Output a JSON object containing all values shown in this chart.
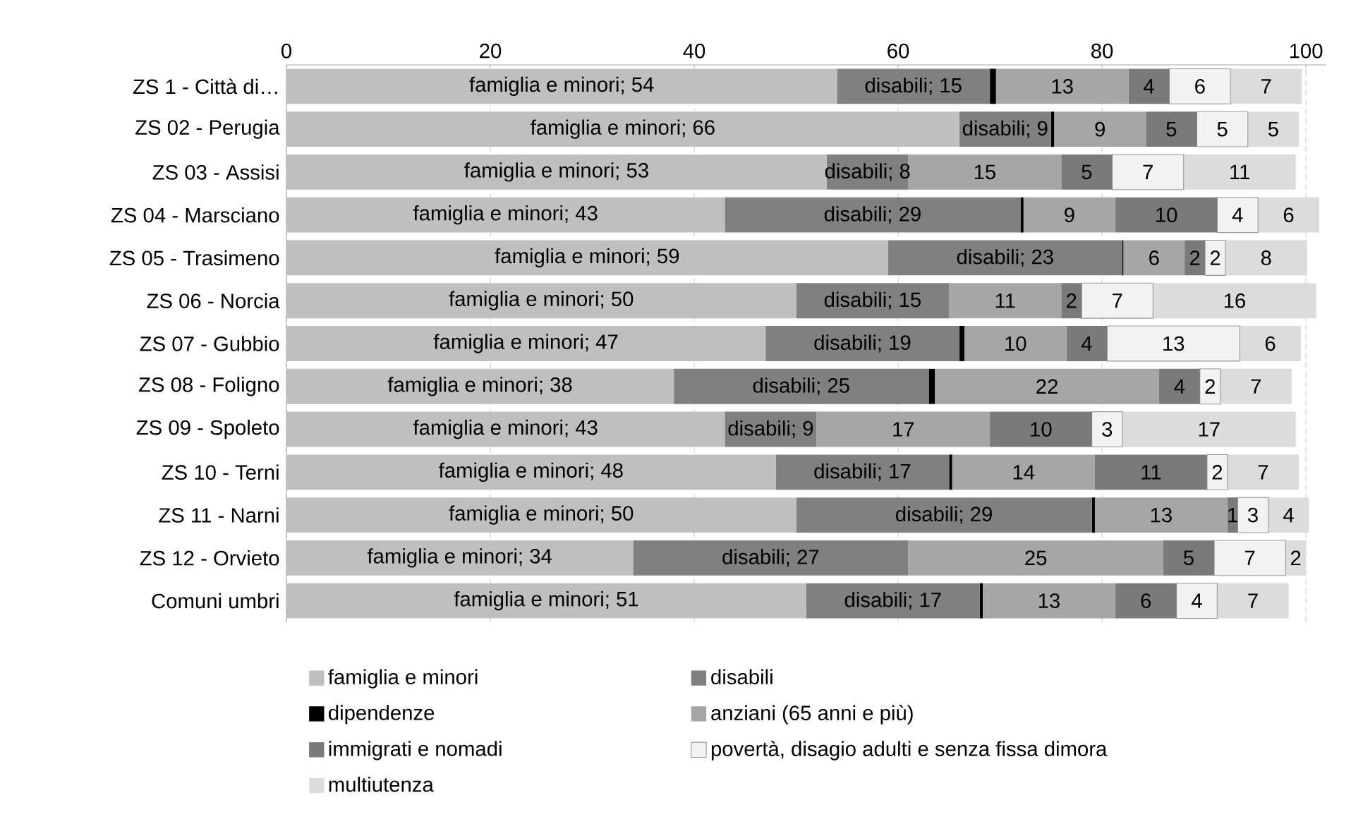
{
  "chart_data": {
    "type": "bar",
    "orientation": "horizontal",
    "stacked": true,
    "categories": [
      "ZS 1 - Città di…",
      "ZS 02 - Perugia",
      "ZS 03 - Assisi",
      "ZS 04 - Marsciano",
      "ZS 05 - Trasimeno",
      "ZS 06 - Norcia",
      "ZS 07 - Gubbio",
      "ZS 08 - Foligno",
      "ZS 09 - Spoleto",
      "ZS 10 - Terni",
      "ZS 11 - Narni",
      "ZS 12 - Orvieto",
      "Comuni umbri"
    ],
    "xlim": [
      0,
      102
    ],
    "xticks": [
      0,
      20,
      40,
      60,
      80,
      100
    ],
    "grid": "x",
    "legend": "bottom",
    "series": [
      {
        "name": "famiglia e minori",
        "color": "#bfbfbf",
        "values": [
          54,
          66,
          53,
          43,
          59,
          50,
          47,
          38,
          43,
          48,
          50,
          34,
          51
        ],
        "value_labels": [
          "famiglia e minori; 54",
          "famiglia e minori; 66",
          "famiglia e minori; 53",
          "famiglia e minori; 43",
          "famiglia e minori; 59",
          "famiglia e minori; 50",
          "famiglia e minori; 47",
          "famiglia e minori; 38",
          "famiglia e minori; 43",
          "famiglia e minori; 48",
          "famiglia e minori; 50",
          "famiglia e minori; 34",
          "famiglia e minori; 51"
        ]
      },
      {
        "name": "disabili",
        "color": "#808080",
        "values": [
          15,
          9,
          8,
          29,
          23,
          15,
          19,
          25,
          9,
          17,
          29,
          27,
          17
        ],
        "value_labels": [
          "disabili; 15",
          "disabili; 9",
          "disabili; 8",
          "disabili; 29",
          "disabili; 23",
          "disabili; 15",
          "disabili; 19",
          "disabili; 25",
          "disabili; 9",
          "disabili; 17",
          "disabili; 29",
          "disabili; 27",
          "disabili; 17"
        ]
      },
      {
        "name": "dipendenze",
        "color": "#000000",
        "values": [
          0.6,
          0.3,
          0,
          0.3,
          0.1,
          0,
          0.5,
          0.6,
          0,
          0.3,
          0.3,
          0,
          0.3
        ]
      },
      {
        "name": "anziani (65 anni e più)",
        "color": "#a6a6a6",
        "values": [
          13,
          9,
          15,
          9,
          6,
          11,
          10,
          22,
          17,
          14,
          13,
          25,
          13
        ],
        "value_labels": [
          "13",
          "9",
          "15",
          "9",
          "6",
          "11",
          "10",
          "22",
          "17",
          "14",
          "13",
          "25",
          "13"
        ]
      },
      {
        "name": "immigrati e nomadi",
        "color": "#7a7a7a",
        "values": [
          4,
          5,
          5,
          10,
          2,
          2,
          4,
          4,
          10,
          11,
          1,
          5,
          6
        ],
        "value_labels": [
          "4",
          "5",
          "5",
          "10",
          "2",
          "2",
          "4",
          "4",
          "10",
          "11",
          "1",
          "5",
          "6"
        ]
      },
      {
        "name": "povertà, disagio adulti e senza fissa dimora",
        "color": "#f2f2f2",
        "values": [
          6,
          5,
          7,
          4,
          2,
          7,
          13,
          2,
          3,
          2,
          3,
          7,
          4
        ],
        "value_labels": [
          "6",
          "5",
          "7",
          "4",
          "2",
          "7",
          "13",
          "2",
          "3",
          "2",
          "3",
          "7",
          "4"
        ]
      },
      {
        "name": "multiutenza",
        "color": "#dcdcdc",
        "values": [
          7,
          5,
          11,
          6,
          8,
          16,
          6,
          7,
          17,
          7,
          4,
          2,
          7
        ],
        "value_labels": [
          "7",
          "5",
          "11",
          "6",
          "8",
          "16",
          "6",
          "7",
          "17",
          "7",
          "4",
          "2",
          "7"
        ]
      }
    ]
  }
}
